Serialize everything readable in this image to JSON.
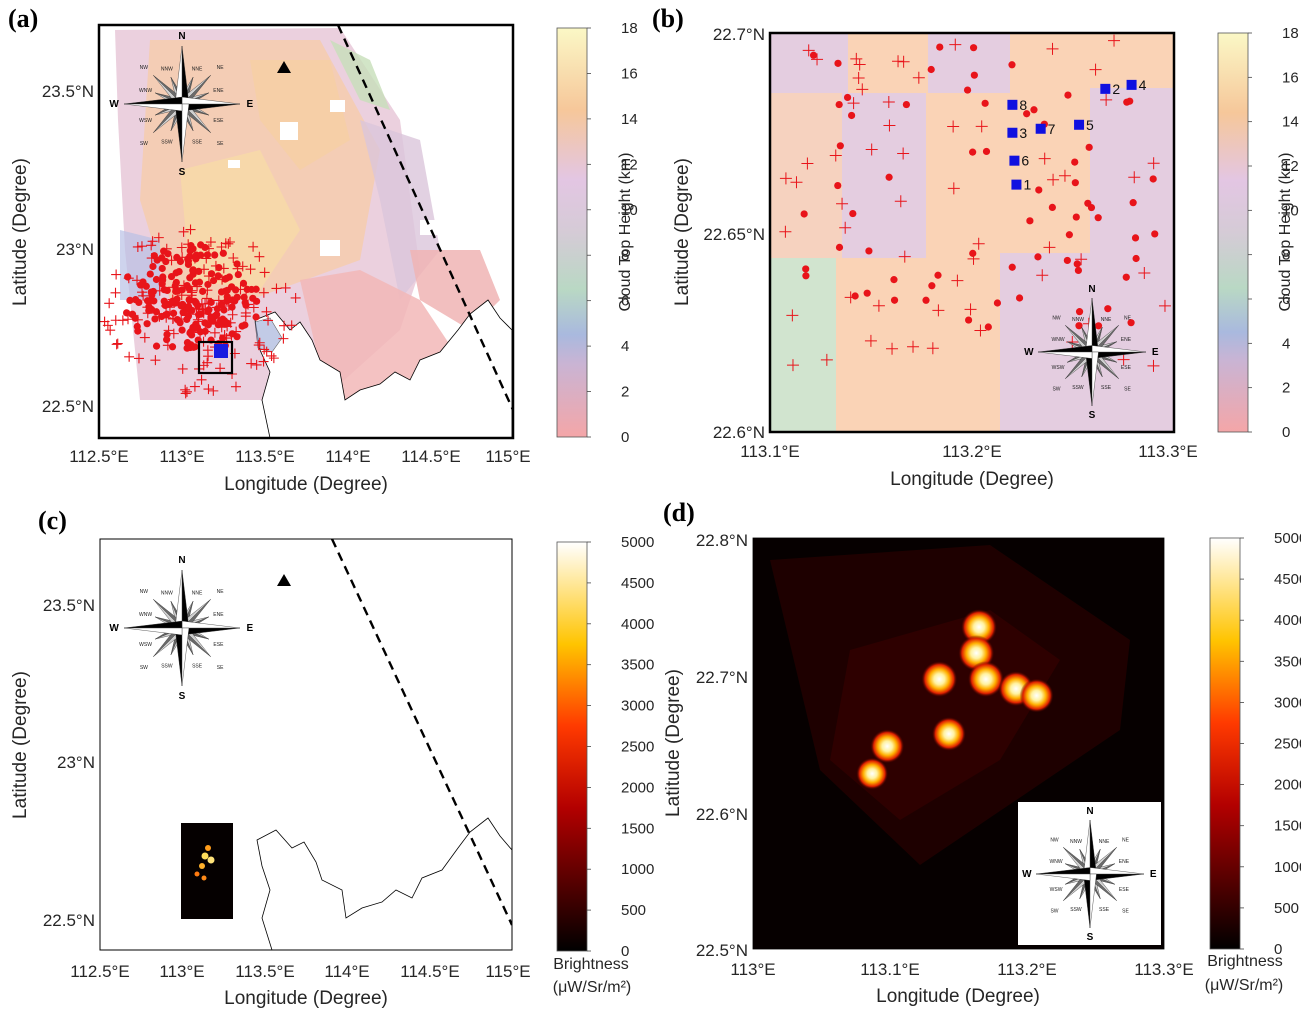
{
  "panels": {
    "a": {
      "label": "(a)",
      "xlabel": "Longitude (Degree)",
      "ylabel": "Latitude (Degree)",
      "xticks": [
        "112.5°E",
        "113°E",
        "113.5°E",
        "114°E",
        "114.5°E",
        "115°E"
      ],
      "yticks": [
        "23.5°N",
        "23°N",
        "22.5°N"
      ],
      "colorbar": {
        "label": "Cloud Top Height (km)",
        "ticks": [
          "0",
          "2",
          "4",
          "6",
          "8",
          "10",
          "12",
          "14",
          "16",
          "18"
        ]
      }
    },
    "b": {
      "label": "(b)",
      "xlabel": "Longitude (Degree)",
      "ylabel": "Latitude (Degree)",
      "xticks": [
        "113.1°E",
        "113.2°E",
        "113.3°E"
      ],
      "yticks": [
        "22.7°N",
        "22.65°N",
        "22.6°N"
      ],
      "colorbar": {
        "label": "Cloud Top Height (km)",
        "ticks": [
          "0",
          "2",
          "4",
          "6",
          "8",
          "10",
          "12",
          "14",
          "16",
          "18"
        ]
      }
    },
    "c": {
      "label": "(c)",
      "xlabel": "Longitude (Degree)",
      "ylabel": "Latitude (Degree)",
      "xticks": [
        "112.5°E",
        "113°E",
        "113.5°E",
        "114°E",
        "114.5°E",
        "115°E"
      ],
      "yticks": [
        "23.5°N",
        "23°N",
        "22.5°N"
      ],
      "colorbar": {
        "label_line1": "Brightness",
        "label_line2": "(μW/Sr/m²)",
        "ticks": [
          "0",
          "500",
          "1000",
          "1500",
          "2000",
          "2500",
          "3000",
          "3500",
          "4000",
          "4500",
          "5000"
        ]
      }
    },
    "d": {
      "label": "(d)",
      "xlabel": "Longitude (Degree)",
      "ylabel": "Latitude (Degree)",
      "xticks": [
        "113°E",
        "113.1°E",
        "113.2°E",
        "113.3°E"
      ],
      "yticks": [
        "22.8°N",
        "22.7°N",
        "22.6°N",
        "22.5°N"
      ],
      "colorbar": {
        "label_line1": "Brightness",
        "label_line2": "(μW/Sr/m²)",
        "ticks": [
          "0",
          "500",
          "1000",
          "1500",
          "2000",
          "2500",
          "3000",
          "3500",
          "4000",
          "4500",
          "5000"
        ]
      }
    }
  },
  "compass": {
    "N": "N",
    "S": "S",
    "E": "E",
    "W": "W",
    "NE": "NE",
    "NW": "NW",
    "SE": "SE",
    "SW": "SW",
    "NNE": "NNE",
    "NNW": "NNW",
    "ENE": "ENE",
    "ESE": "ESE",
    "SSE": "SSE",
    "SSW": "SSW",
    "WSW": "WSW",
    "WNW": "WNW"
  },
  "station_labels": [
    "1",
    "2",
    "3",
    "4",
    "5",
    "6",
    "7",
    "8"
  ],
  "colors": {
    "flash_marker": "#e8141a",
    "station_marker": "#1010e0",
    "frame": "#000000"
  },
  "chart_data": [
    {
      "type": "heatmap",
      "panel": "a",
      "quantity": "Cloud Top Height",
      "unit": "km",
      "clim": [
        0,
        18
      ],
      "xlim": [
        112.5,
        115
      ],
      "ylim": [
        22.37,
        23.67
      ],
      "overlays": [
        "lightning flashes (dots and crosses)",
        "station markers",
        "coastline",
        "dashed line",
        "triangle marker",
        "compass rose"
      ]
    },
    {
      "type": "scatter",
      "panel": "b",
      "xlim": [
        113.1,
        113.3
      ],
      "ylim": [
        22.6,
        22.7
      ],
      "background": "Cloud Top Height (km)",
      "clim": [
        0,
        18
      ],
      "stations": [
        {
          "label": "1",
          "lon": 113.222,
          "lat": 22.662
        },
        {
          "label": "2",
          "lon": 113.266,
          "lat": 22.686
        },
        {
          "label": "3",
          "lon": 113.22,
          "lat": 22.675
        },
        {
          "label": "4",
          "lon": 113.279,
          "lat": 22.687
        },
        {
          "label": "5",
          "lon": 113.253,
          "lat": 22.677
        },
        {
          "label": "6",
          "lon": 113.221,
          "lat": 22.668
        },
        {
          "label": "7",
          "lon": 113.234,
          "lat": 22.676
        },
        {
          "label": "8",
          "lon": 113.22,
          "lat": 22.682
        }
      ]
    },
    {
      "type": "heatmap",
      "panel": "c",
      "quantity": "Brightness",
      "unit": "μW/Sr/m²",
      "clim": [
        0,
        5000
      ],
      "xlim": [
        112.5,
        115
      ],
      "ylim": [
        22.37,
        23.67
      ]
    },
    {
      "type": "heatmap",
      "panel": "d",
      "quantity": "Brightness",
      "unit": "μW/Sr/m²",
      "clim": [
        0,
        5000
      ],
      "xlim": [
        113,
        113.3
      ],
      "ylim": [
        22.5,
        22.8
      ],
      "blobs": [
        {
          "lon": 113.165,
          "lat": 22.735,
          "value": 5000
        },
        {
          "lon": 113.163,
          "lat": 22.716,
          "value": 5000
        },
        {
          "lon": 113.136,
          "lat": 22.697,
          "value": 5000
        },
        {
          "lon": 113.17,
          "lat": 22.697,
          "value": 5000
        },
        {
          "lon": 113.192,
          "lat": 22.69,
          "value": 4800
        },
        {
          "lon": 113.207,
          "lat": 22.685,
          "value": 4500
        },
        {
          "lon": 113.143,
          "lat": 22.657,
          "value": 4500
        },
        {
          "lon": 113.098,
          "lat": 22.648,
          "value": 4500
        },
        {
          "lon": 113.087,
          "lat": 22.628,
          "value": 4000
        }
      ]
    }
  ]
}
